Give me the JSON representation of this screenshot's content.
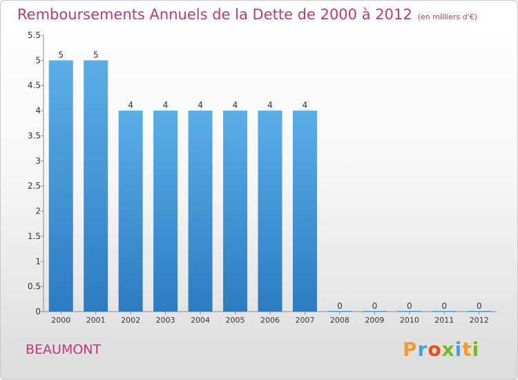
{
  "title": "Remboursements Annuels de la Dette de 2000 à 2012",
  "unit_note": "(en milliers d'€)",
  "commune": "BEAUMONT",
  "logo": {
    "letters": [
      "P",
      "r",
      "o",
      "x",
      "i",
      "t",
      "i"
    ],
    "colors": [
      "#f39c2d",
      "#3aa6dd",
      "#e94e1b",
      "#76b82a",
      "#3aa6dd",
      "#f39c2d",
      "#76b82a"
    ]
  },
  "colors": {
    "bar_light": "#5aaee8",
    "bar_dark": "#2c7cc0",
    "title": "#c8366e"
  },
  "chart_data": {
    "type": "bar",
    "categories": [
      "2000",
      "2001",
      "2002",
      "2003",
      "2004",
      "2005",
      "2006",
      "2007",
      "2008",
      "2009",
      "2010",
      "2011",
      "2012"
    ],
    "values": [
      5,
      5,
      4,
      4,
      4,
      4,
      4,
      4,
      0,
      0,
      0,
      0,
      0
    ],
    "data_labels": [
      "5",
      "5",
      "4",
      "4",
      "4",
      "4",
      "4",
      "4",
      "0",
      "0",
      "0",
      "0",
      "0"
    ],
    "yticks": [
      "0",
      "0.5",
      "1",
      "1.5",
      "2",
      "2.5",
      "3",
      "3.5",
      "4",
      "4.5",
      "5",
      "5.5"
    ],
    "ylim": [
      0,
      5.5
    ],
    "grid": false,
    "title": "Remboursements Annuels de la Dette de 2000 à 2012",
    "xlabel": "",
    "ylabel": ""
  }
}
